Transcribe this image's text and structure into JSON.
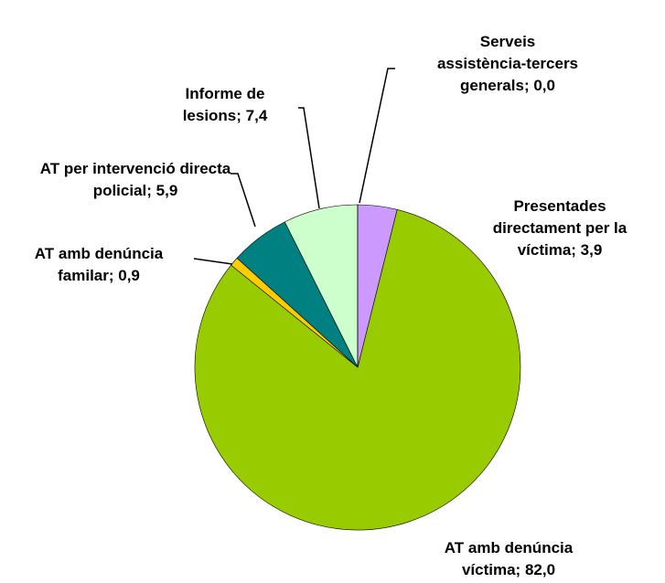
{
  "chart_data": {
    "type": "pie",
    "categories": [
      "Serveis assistència-tercers generals",
      "Presentades directament per la víctima",
      "AT amb denúncia víctima",
      "AT amb denúncia familar",
      "AT per intervenció directa policial",
      "Informe de lesions"
    ],
    "values": [
      0.0,
      3.9,
      82.0,
      0.9,
      5.9,
      7.4
    ],
    "value_labels": [
      "0,0",
      "3,9",
      "82,0",
      "0,9",
      "5,9",
      "7,4"
    ],
    "label_separator": "; ",
    "colors": [
      "#993366",
      "#cc99ff",
      "#99cc00",
      "#ffcc00",
      "#008080",
      "#ccffcc"
    ]
  }
}
